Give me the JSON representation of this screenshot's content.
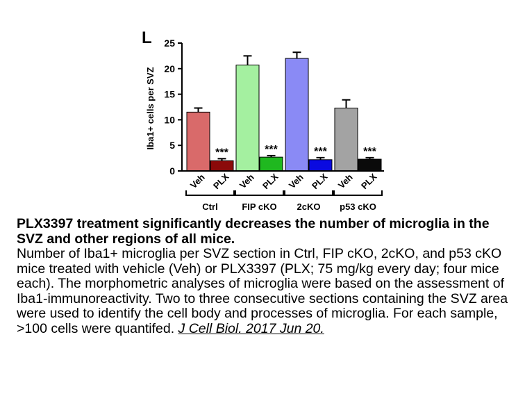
{
  "panel_label": "L",
  "chart_data": {
    "type": "bar",
    "ylabel": "Iba1+ cells per SVZ",
    "ylim": [
      0,
      25
    ],
    "yticks": [
      0,
      5,
      10,
      15,
      20,
      25
    ],
    "groups": [
      "Ctrl",
      "FIP cKO",
      "2cKO",
      "p53 cKO"
    ],
    "bars": [
      {
        "group": "Ctrl",
        "label": "Veh",
        "value": 11.5,
        "error": 0.8,
        "color": "#d96a6a",
        "sig": ""
      },
      {
        "group": "Ctrl",
        "label": "PLX",
        "value": 2.0,
        "error": 0.4,
        "color": "#8b0a0a",
        "sig": "***"
      },
      {
        "group": "FIP cKO",
        "label": "Veh",
        "value": 20.7,
        "error": 1.8,
        "color": "#a4f0a0",
        "sig": ""
      },
      {
        "group": "FIP cKO",
        "label": "PLX",
        "value": 2.7,
        "error": 0.3,
        "color": "#1fb81f",
        "sig": "***"
      },
      {
        "group": "2cKO",
        "label": "Veh",
        "value": 22.0,
        "error": 1.2,
        "color": "#8a8af5",
        "sig": ""
      },
      {
        "group": "2cKO",
        "label": "PLX",
        "value": 2.2,
        "error": 0.4,
        "color": "#0a0ae0",
        "sig": "***"
      },
      {
        "group": "p53 cKO",
        "label": "Veh",
        "value": 12.3,
        "error": 1.6,
        "color": "#a3a3a3",
        "sig": ""
      },
      {
        "group": "p53 cKO",
        "label": "PLX",
        "value": 2.3,
        "error": 0.3,
        "color": "#0a0a0a",
        "sig": "***"
      }
    ]
  },
  "caption": {
    "title": "PLX3397 treatment significantly decreases the number of microglia in the SVZ and other regions of all mice.",
    "body": "Number of Iba1+ microglia per SVZ section in Ctrl, FIP cKO, 2cKO, and p53 cKO mice treated with vehicle (Veh) or PLX3397 (PLX; 75 mg/kg every day; four mice each). The morphometric analyses of microglia were based on the assessment of Iba1-immunoreactivity. Two to three consecutive sections containing the SVZ area were used to identify the cell body and processes of microglia. For each sample, >100 cells were quantifed. ",
    "citation": "J Cell Biol. 2017 Jun 20."
  }
}
